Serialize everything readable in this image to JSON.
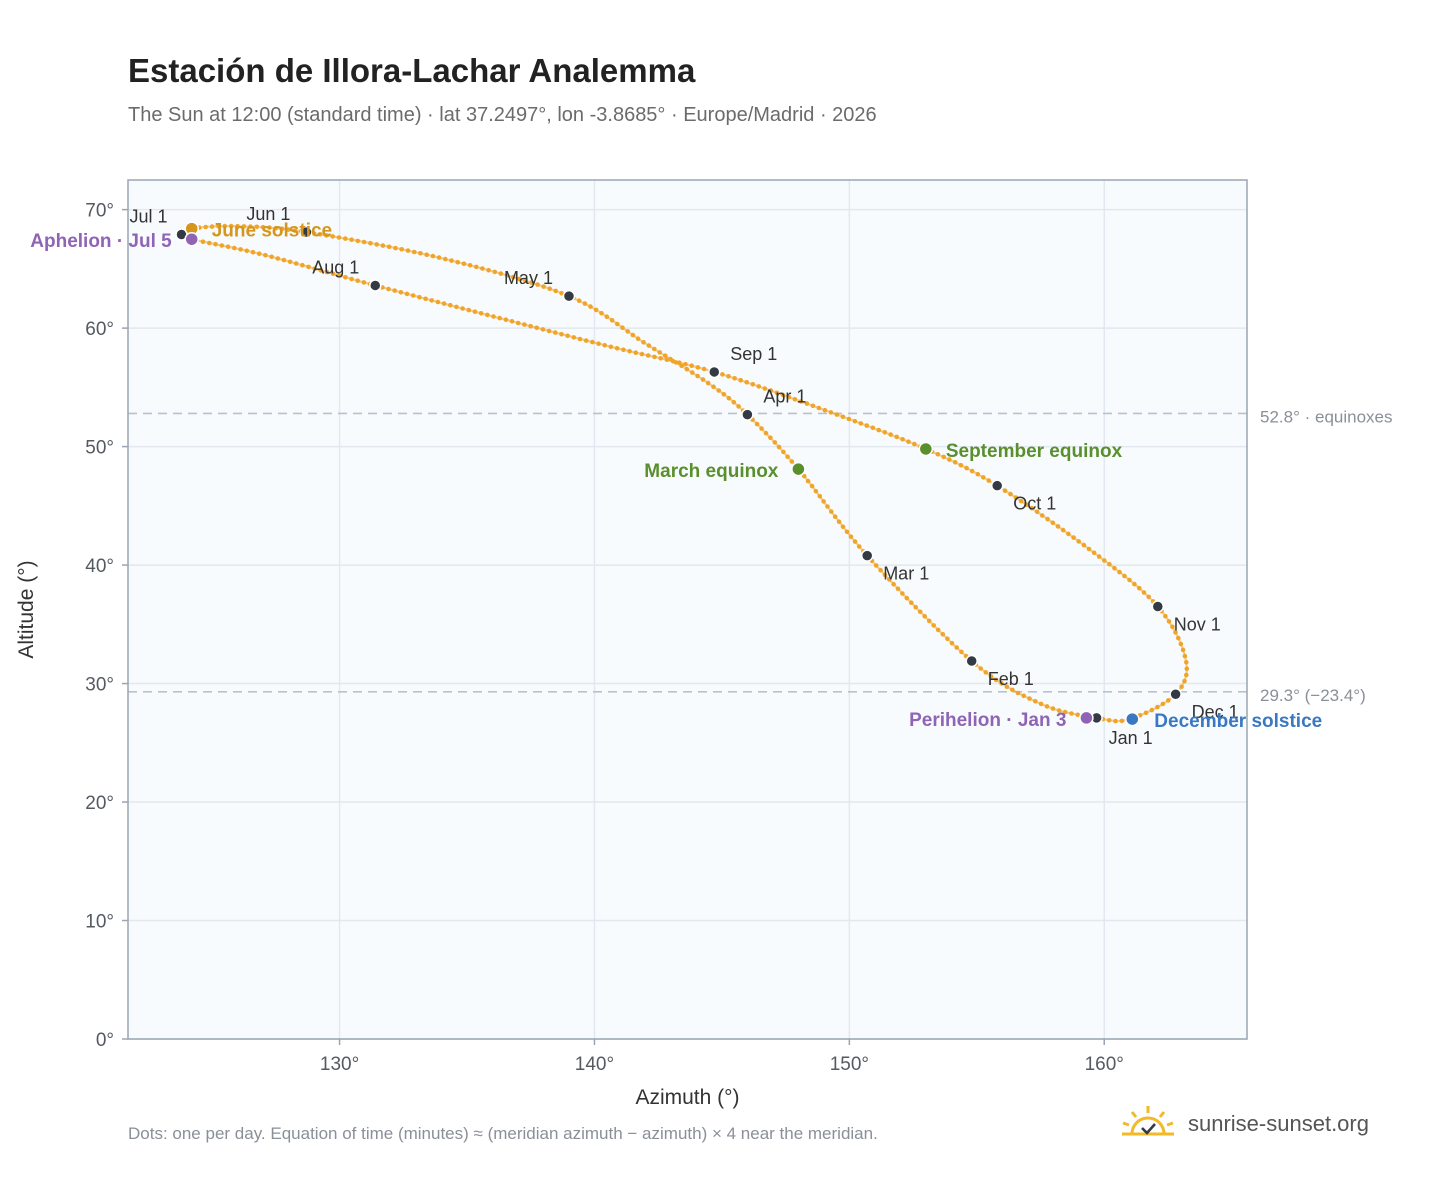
{
  "title": "Estación de Illora-Lachar Analemma",
  "subtitle": "The Sun at 12:00 (standard time) · lat 37.2497°, lon -3.8685° · Europe/Madrid · 2026",
  "footnote": "Dots: one per day. Equation of time (minutes) ≈ (meridian azimuth − azimuth) × 4 near the meridian.",
  "brand": "sunrise-sunset.org",
  "colors": {
    "curve": "#f0a52a",
    "month_dot": "#333a44",
    "june_solstice": "#d4961e",
    "december_solstice": "#3a78c2",
    "equinox": "#5a8f2e",
    "apsis": "#8f64b4",
    "reference_line": "#b8c2ce",
    "plot_bg": "#f8fbfe",
    "grid": "#e2e8ef",
    "frame": "#9aa5b4"
  },
  "chart_data": {
    "type": "scatter",
    "xlabel": "Azimuth (°)",
    "ylabel": "Altitude (°)",
    "xlim": [
      121.7,
      165.6
    ],
    "ylim": [
      0,
      72.5
    ],
    "xticks": [
      130,
      140,
      150,
      160
    ],
    "xtick_labels": [
      "130°",
      "140°",
      "150°",
      "160°"
    ],
    "yticks": [
      0,
      10,
      20,
      30,
      40,
      50,
      60,
      70
    ],
    "ytick_labels": [
      "0°",
      "10°",
      "20°",
      "30°",
      "40°",
      "50°",
      "60°",
      "70°"
    ],
    "grid": true,
    "series_description": "one dot per day",
    "analemma_path": [
      {
        "az": 159.7,
        "alt": 27.1
      },
      {
        "az": 157.5,
        "alt": 28.3
      },
      {
        "az": 154.8,
        "alt": 31.9
      },
      {
        "az": 150.7,
        "alt": 40.8
      },
      {
        "az": 148.0,
        "alt": 48.1
      },
      {
        "az": 146.0,
        "alt": 52.7
      },
      {
        "az": 144.5,
        "alt": 55.3
      },
      {
        "az": 142.0,
        "alt": 58.7
      },
      {
        "az": 139.0,
        "alt": 62.7
      },
      {
        "az": 134.0,
        "alt": 65.9
      },
      {
        "az": 128.7,
        "alt": 68.1
      },
      {
        "az": 126.0,
        "alt": 68.6
      },
      {
        "az": 124.2,
        "alt": 68.4
      },
      {
        "az": 123.8,
        "alt": 67.9
      },
      {
        "az": 124.2,
        "alt": 67.5
      },
      {
        "az": 127.0,
        "alt": 66.2
      },
      {
        "az": 131.4,
        "alt": 63.6
      },
      {
        "az": 136.0,
        "alt": 61.0
      },
      {
        "az": 140.5,
        "alt": 58.5
      },
      {
        "az": 144.7,
        "alt": 56.3
      },
      {
        "az": 149.0,
        "alt": 53.1
      },
      {
        "az": 153.0,
        "alt": 49.8
      },
      {
        "az": 155.8,
        "alt": 46.7
      },
      {
        "az": 159.5,
        "alt": 41.2
      },
      {
        "az": 162.1,
        "alt": 36.5
      },
      {
        "az": 163.2,
        "alt": 32.0
      },
      {
        "az": 162.8,
        "alt": 29.1
      },
      {
        "az": 161.0,
        "alt": 27.0
      },
      {
        "az": 159.7,
        "alt": 27.1
      }
    ],
    "month_markers": [
      {
        "label": "Jan 1",
        "az": 159.7,
        "alt": 27.1,
        "anchor": "start",
        "dx": 12,
        "dy": 26
      },
      {
        "label": "Feb 1",
        "az": 154.8,
        "alt": 31.9,
        "anchor": "start",
        "dx": 16,
        "dy": 24
      },
      {
        "label": "Mar 1",
        "az": 150.7,
        "alt": 40.8,
        "anchor": "start",
        "dx": 16,
        "dy": 24
      },
      {
        "label": "Apr 1",
        "az": 146.0,
        "alt": 52.7,
        "anchor": "start",
        "dx": 16,
        "dy": -12
      },
      {
        "label": "May 1",
        "az": 139.0,
        "alt": 62.7,
        "anchor": "end",
        "dx": -16,
        "dy": -12
      },
      {
        "label": "Jun 1",
        "az": 128.7,
        "alt": 68.1,
        "anchor": "end",
        "dx": -16,
        "dy": -12
      },
      {
        "label": "Jul 1",
        "az": 123.8,
        "alt": 67.9,
        "anchor": "end",
        "dx": -14,
        "dy": -12
      },
      {
        "label": "Aug 1",
        "az": 131.4,
        "alt": 63.6,
        "anchor": "end",
        "dx": -16,
        "dy": -12
      },
      {
        "label": "Sep 1",
        "az": 144.7,
        "alt": 56.3,
        "anchor": "start",
        "dx": 16,
        "dy": -12
      },
      {
        "label": "Oct 1",
        "az": 155.8,
        "alt": 46.7,
        "anchor": "start",
        "dx": 16,
        "dy": 24
      },
      {
        "label": "Nov 1",
        "az": 162.1,
        "alt": 36.5,
        "anchor": "start",
        "dx": 16,
        "dy": 24
      },
      {
        "label": "Dec 1",
        "az": 162.8,
        "alt": 29.1,
        "anchor": "start",
        "dx": 16,
        "dy": 24
      }
    ],
    "key_events": [
      {
        "label": "June solstice",
        "az": 124.2,
        "alt": 68.4,
        "color_key": "june_solstice",
        "anchor": "start",
        "dx": 20,
        "dy": 8
      },
      {
        "label": "Aphelion · Jul 5",
        "az": 124.2,
        "alt": 67.5,
        "color_key": "apsis",
        "anchor": "end",
        "dx": -20,
        "dy": 8
      },
      {
        "label": "March equinox",
        "az": 148.0,
        "alt": 48.1,
        "color_key": "equinox",
        "anchor": "end",
        "dx": -20,
        "dy": 8
      },
      {
        "label": "September equinox",
        "az": 153.0,
        "alt": 49.8,
        "color_key": "equinox",
        "anchor": "start",
        "dx": 20,
        "dy": 8
      },
      {
        "label": "Perihelion · Jan 3",
        "az": 159.3,
        "alt": 27.1,
        "color_key": "apsis",
        "anchor": "end",
        "dx": -20,
        "dy": 8
      },
      {
        "label": "December solstice",
        "az": 161.1,
        "alt": 27.0,
        "color_key": "december_solstice",
        "anchor": "start",
        "dx": 22,
        "dy": 8
      }
    ],
    "reference_lines": [
      {
        "alt": 52.8,
        "label": "52.8° · equinoxes"
      },
      {
        "alt": 29.3,
        "label": "29.3° (−23.4°)"
      }
    ]
  }
}
